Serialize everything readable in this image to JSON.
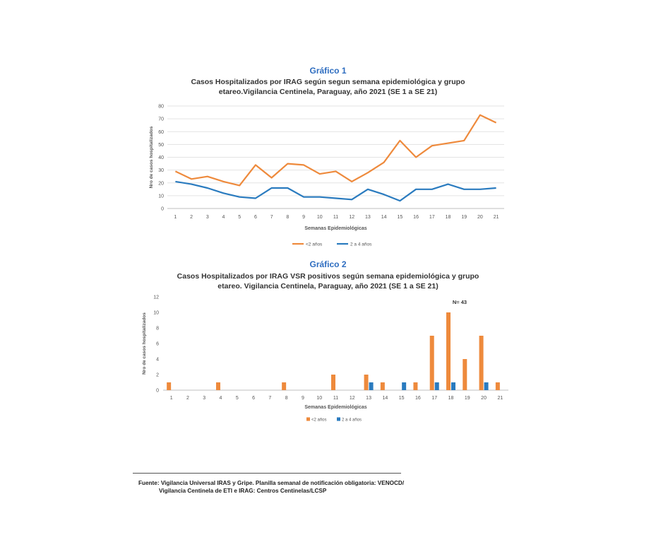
{
  "chart1_label": "Gráfico 1",
  "chart1_title1": "Casos Hospitalizados por IRAG según segun semana epidemiológica y grupo",
  "chart1_title2": "etareo.Vigilancia Centinela, Paraguay,  año 2021 (SE 1 a SE 21)",
  "chart2_label": "Gráfico 2",
  "chart2_title1": "Casos Hospitalizados por IRAG VSR positivos según semana epidemiológica y grupo",
  "chart2_title2": "etareo. Vigilancia Centinela, Paraguay,  año 2021 (SE 1 a SE 21)",
  "source1": "Fuente: Vigilancia Universal IRAS y Gripe. Planilla semanal de notificación obligatoria: VENOCD/",
  "source2": "Vigilancia Centinela de ETI e IRAG: Centros Centinelas/LCSP",
  "colors": {
    "under2": "#ee8a3c",
    "2to4": "#2a7bbf",
    "label_blue": "#2e6dc0"
  },
  "chart_data": [
    {
      "type": "line",
      "xlabel": "Semanas Epidemiológicas",
      "ylabel": "Nro de casos hospitalizados",
      "ylim": [
        0,
        80
      ],
      "yticks": [
        0,
        10,
        20,
        30,
        40,
        50,
        60,
        70,
        80
      ],
      "grid": true,
      "legend": "bottom",
      "categories": [
        "1",
        "2",
        "3",
        "4",
        "5",
        "6",
        "7",
        "8",
        "9",
        "10",
        "11",
        "12",
        "13",
        "14",
        "15",
        "16",
        "17",
        "18",
        "19",
        "20",
        "21"
      ],
      "series": [
        {
          "name": "<2 años",
          "color": "#ee8a3c",
          "values": [
            29,
            23,
            25,
            21,
            18,
            34,
            24,
            35,
            34,
            27,
            29,
            21,
            28,
            36,
            53,
            40,
            49,
            51,
            53,
            73,
            67
          ]
        },
        {
          "name": "2 a 4 años",
          "color": "#2a7bbf",
          "values": [
            21,
            19,
            16,
            12,
            9,
            8,
            16,
            16,
            9,
            9,
            8,
            7,
            15,
            11,
            6,
            15,
            15,
            19,
            15,
            15,
            16
          ]
        }
      ]
    },
    {
      "type": "bar",
      "xlabel": "Semanas Epidemiológicas",
      "ylabel": "Nro de casos hospitalizados",
      "ylim": [
        0,
        12
      ],
      "yticks": [
        0,
        2,
        4,
        6,
        8,
        10,
        12
      ],
      "grid": false,
      "legend": "bottom",
      "annotation": "N= 43",
      "categories": [
        "1",
        "2",
        "3",
        "4",
        "5",
        "6",
        "7",
        "8",
        "9",
        "10",
        "11",
        "12",
        "13",
        "14",
        "15",
        "16",
        "17",
        "18",
        "19",
        "20",
        "21"
      ],
      "series": [
        {
          "name": "<2 años",
          "color": "#ee8a3c",
          "values": [
            1,
            0,
            0,
            1,
            0,
            0,
            0,
            1,
            0,
            0,
            2,
            0,
            2,
            1,
            0,
            1,
            7,
            10,
            4,
            7,
            1
          ]
        },
        {
          "name": "2 a 4 años",
          "color": "#2a7bbf",
          "values": [
            0,
            0,
            0,
            0,
            0,
            0,
            0,
            0,
            0,
            0,
            0,
            0,
            1,
            0,
            1,
            0,
            1,
            1,
            0,
            1,
            0
          ]
        }
      ]
    }
  ]
}
